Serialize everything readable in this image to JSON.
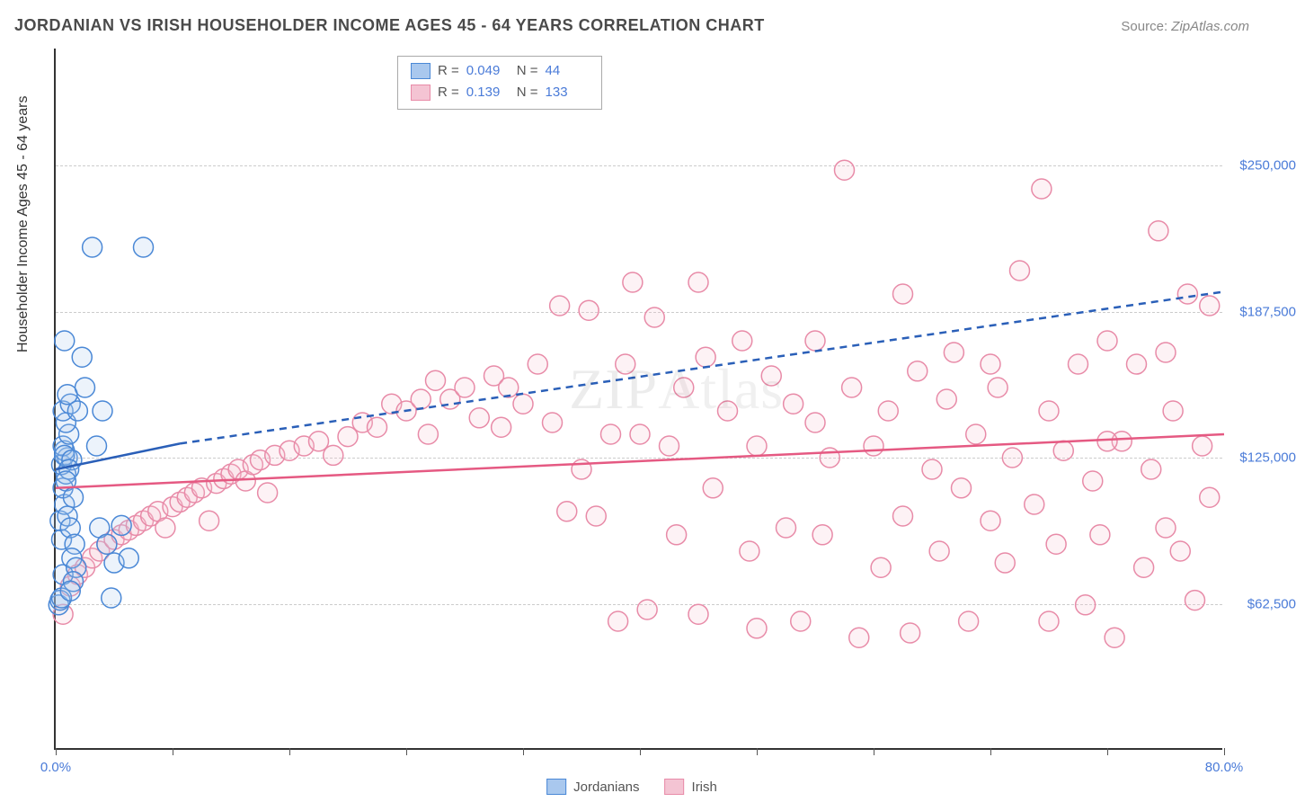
{
  "header": {
    "title": "JORDANIAN VS IRISH HOUSEHOLDER INCOME AGES 45 - 64 YEARS CORRELATION CHART",
    "source_label": "Source:",
    "source_name": "ZipAtlas.com"
  },
  "watermark": "ZIPAtlas",
  "chart": {
    "type": "scatter",
    "y_axis_label": "Householder Income Ages 45 - 64 years",
    "xlim": [
      0,
      80
    ],
    "ylim": [
      0,
      300000
    ],
    "x_tick_positions": [
      0,
      8,
      16,
      24,
      32,
      40,
      48,
      56,
      64,
      72,
      80
    ],
    "x_tick_labels": {
      "0": "0.0%",
      "80": "80.0%"
    },
    "y_gridlines": [
      62500,
      125000,
      187500,
      250000
    ],
    "y_tick_labels": {
      "62500": "$62,500",
      "125000": "$125,000",
      "187500": "$187,500",
      "250000": "$250,000"
    },
    "background_color": "#ffffff",
    "grid_color": "#cccccc",
    "axis_color": "#333333",
    "tick_label_color": "#4a7bd8",
    "marker_radius": 11,
    "marker_stroke_width": 1.5,
    "marker_fill_opacity": 0.22,
    "series": {
      "jordanians": {
        "label": "Jordanians",
        "color_stroke": "#4a88d6",
        "color_fill": "#a9c8ee",
        "r_value": "0.049",
        "n_value": "44",
        "trend_solid": {
          "x1": 0,
          "y1": 120000,
          "x2": 8.5,
          "y2": 131000
        },
        "trend_dashed": {
          "x1": 8.5,
          "y1": 131000,
          "x2": 80,
          "y2": 196000
        },
        "line_color": "#2a5fb8",
        "line_width": 2.5,
        "points": [
          [
            0.2,
            62000
          ],
          [
            0.3,
            64000
          ],
          [
            0.4,
            65000
          ],
          [
            0.5,
            75000
          ],
          [
            0.4,
            90000
          ],
          [
            0.3,
            98000
          ],
          [
            0.6,
            105000
          ],
          [
            0.5,
            112000
          ],
          [
            0.7,
            118000
          ],
          [
            0.4,
            122000
          ],
          [
            0.8,
            125000
          ],
          [
            0.6,
            128000
          ],
          [
            0.5,
            130000
          ],
          [
            0.9,
            135000
          ],
          [
            0.7,
            140000
          ],
          [
            0.5,
            145000
          ],
          [
            1.0,
            148000
          ],
          [
            0.8,
            152000
          ],
          [
            0.6,
            126000
          ],
          [
            1.1,
            124000
          ],
          [
            0.9,
            120000
          ],
          [
            0.7,
            115000
          ],
          [
            1.2,
            108000
          ],
          [
            0.8,
            100000
          ],
          [
            1.0,
            95000
          ],
          [
            1.3,
            88000
          ],
          [
            1.1,
            82000
          ],
          [
            1.4,
            78000
          ],
          [
            1.2,
            72000
          ],
          [
            1.0,
            68000
          ],
          [
            0.6,
            175000
          ],
          [
            1.5,
            145000
          ],
          [
            2.0,
            155000
          ],
          [
            2.8,
            130000
          ],
          [
            3.2,
            145000
          ],
          [
            3.0,
            95000
          ],
          [
            3.5,
            88000
          ],
          [
            4.0,
            80000
          ],
          [
            4.5,
            96000
          ],
          [
            3.8,
            65000
          ],
          [
            5.0,
            82000
          ],
          [
            2.5,
            215000
          ],
          [
            6.0,
            215000
          ],
          [
            1.8,
            168000
          ]
        ]
      },
      "irish": {
        "label": "Irish",
        "color_stroke": "#e88ba8",
        "color_fill": "#f4c4d3",
        "r_value": "0.139",
        "n_value": "133",
        "trend_solid": {
          "x1": 0,
          "y1": 112000,
          "x2": 80,
          "y2": 135000
        },
        "line_color": "#e55982",
        "line_width": 2.5,
        "points": [
          [
            0.5,
            58000
          ],
          [
            1.0,
            70000
          ],
          [
            1.5,
            75000
          ],
          [
            2.0,
            78000
          ],
          [
            2.5,
            82000
          ],
          [
            3.0,
            85000
          ],
          [
            3.5,
            88000
          ],
          [
            4.0,
            90000
          ],
          [
            4.5,
            92000
          ],
          [
            5.0,
            94000
          ],
          [
            5.5,
            96000
          ],
          [
            6.0,
            98000
          ],
          [
            6.5,
            100000
          ],
          [
            7.0,
            102000
          ],
          [
            7.5,
            95000
          ],
          [
            8.0,
            104000
          ],
          [
            8.5,
            106000
          ],
          [
            9.0,
            108000
          ],
          [
            9.5,
            110000
          ],
          [
            10.0,
            112000
          ],
          [
            10.5,
            98000
          ],
          [
            11.0,
            114000
          ],
          [
            11.5,
            116000
          ],
          [
            12.0,
            118000
          ],
          [
            12.5,
            120000
          ],
          [
            13.0,
            115000
          ],
          [
            13.5,
            122000
          ],
          [
            14.0,
            124000
          ],
          [
            14.5,
            110000
          ],
          [
            15.0,
            126000
          ],
          [
            16.0,
            128000
          ],
          [
            17.0,
            130000
          ],
          [
            18.0,
            132000
          ],
          [
            19.0,
            126000
          ],
          [
            20.0,
            134000
          ],
          [
            21.0,
            140000
          ],
          [
            22.0,
            138000
          ],
          [
            23.0,
            148000
          ],
          [
            24.0,
            145000
          ],
          [
            25.0,
            150000
          ],
          [
            25.5,
            135000
          ],
          [
            26.0,
            158000
          ],
          [
            27.0,
            150000
          ],
          [
            28.0,
            155000
          ],
          [
            29.0,
            142000
          ],
          [
            30.0,
            160000
          ],
          [
            30.5,
            138000
          ],
          [
            31.0,
            155000
          ],
          [
            32.0,
            148000
          ],
          [
            33.0,
            165000
          ],
          [
            34.0,
            140000
          ],
          [
            34.5,
            190000
          ],
          [
            35.0,
            102000
          ],
          [
            36.0,
            120000
          ],
          [
            37.0,
            100000
          ],
          [
            38.0,
            135000
          ],
          [
            38.5,
            55000
          ],
          [
            39.0,
            165000
          ],
          [
            39.5,
            200000
          ],
          [
            40.0,
            135000
          ],
          [
            40.5,
            60000
          ],
          [
            41.0,
            185000
          ],
          [
            42.0,
            130000
          ],
          [
            42.5,
            92000
          ],
          [
            43.0,
            155000
          ],
          [
            44.0,
            58000
          ],
          [
            44.5,
            168000
          ],
          [
            45.0,
            112000
          ],
          [
            46.0,
            145000
          ],
          [
            47.0,
            175000
          ],
          [
            47.5,
            85000
          ],
          [
            48.0,
            130000
          ],
          [
            49.0,
            160000
          ],
          [
            50.0,
            95000
          ],
          [
            50.5,
            148000
          ],
          [
            51.0,
            55000
          ],
          [
            52.0,
            140000
          ],
          [
            52.5,
            92000
          ],
          [
            53.0,
            125000
          ],
          [
            54.0,
            248000
          ],
          [
            54.5,
            155000
          ],
          [
            55.0,
            48000
          ],
          [
            56.0,
            130000
          ],
          [
            56.5,
            78000
          ],
          [
            57.0,
            145000
          ],
          [
            58.0,
            100000
          ],
          [
            58.5,
            50000
          ],
          [
            59.0,
            162000
          ],
          [
            60.0,
            120000
          ],
          [
            60.5,
            85000
          ],
          [
            61.0,
            150000
          ],
          [
            61.5,
            170000
          ],
          [
            62.0,
            112000
          ],
          [
            62.5,
            55000
          ],
          [
            63.0,
            135000
          ],
          [
            64.0,
            98000
          ],
          [
            64.5,
            155000
          ],
          [
            65.0,
            80000
          ],
          [
            65.5,
            125000
          ],
          [
            66.0,
            205000
          ],
          [
            67.0,
            105000
          ],
          [
            67.5,
            240000
          ],
          [
            68.0,
            145000
          ],
          [
            68.5,
            88000
          ],
          [
            69.0,
            128000
          ],
          [
            70.0,
            165000
          ],
          [
            70.5,
            62000
          ],
          [
            71.0,
            115000
          ],
          [
            71.5,
            92000
          ],
          [
            72.0,
            175000
          ],
          [
            72.5,
            48000
          ],
          [
            73.0,
            132000
          ],
          [
            74.0,
            165000
          ],
          [
            74.5,
            78000
          ],
          [
            75.0,
            120000
          ],
          [
            75.5,
            222000
          ],
          [
            76.0,
            95000
          ],
          [
            76.5,
            145000
          ],
          [
            77.0,
            85000
          ],
          [
            77.5,
            195000
          ],
          [
            78.0,
            64000
          ],
          [
            78.5,
            130000
          ],
          [
            79.0,
            108000
          ],
          [
            79.0,
            190000
          ],
          [
            76.0,
            170000
          ],
          [
            72.0,
            132000
          ],
          [
            68.0,
            55000
          ],
          [
            64.0,
            165000
          ],
          [
            58.0,
            195000
          ],
          [
            52.0,
            175000
          ],
          [
            48.0,
            52000
          ],
          [
            44.0,
            200000
          ],
          [
            36.5,
            188000
          ]
        ]
      }
    }
  },
  "bottom_legend": {
    "items": [
      {
        "swatch_fill": "#a9c8ee",
        "swatch_stroke": "#4a88d6",
        "label": "Jordanians"
      },
      {
        "swatch_fill": "#f4c4d3",
        "swatch_stroke": "#e88ba8",
        "label": "Irish"
      }
    ]
  }
}
